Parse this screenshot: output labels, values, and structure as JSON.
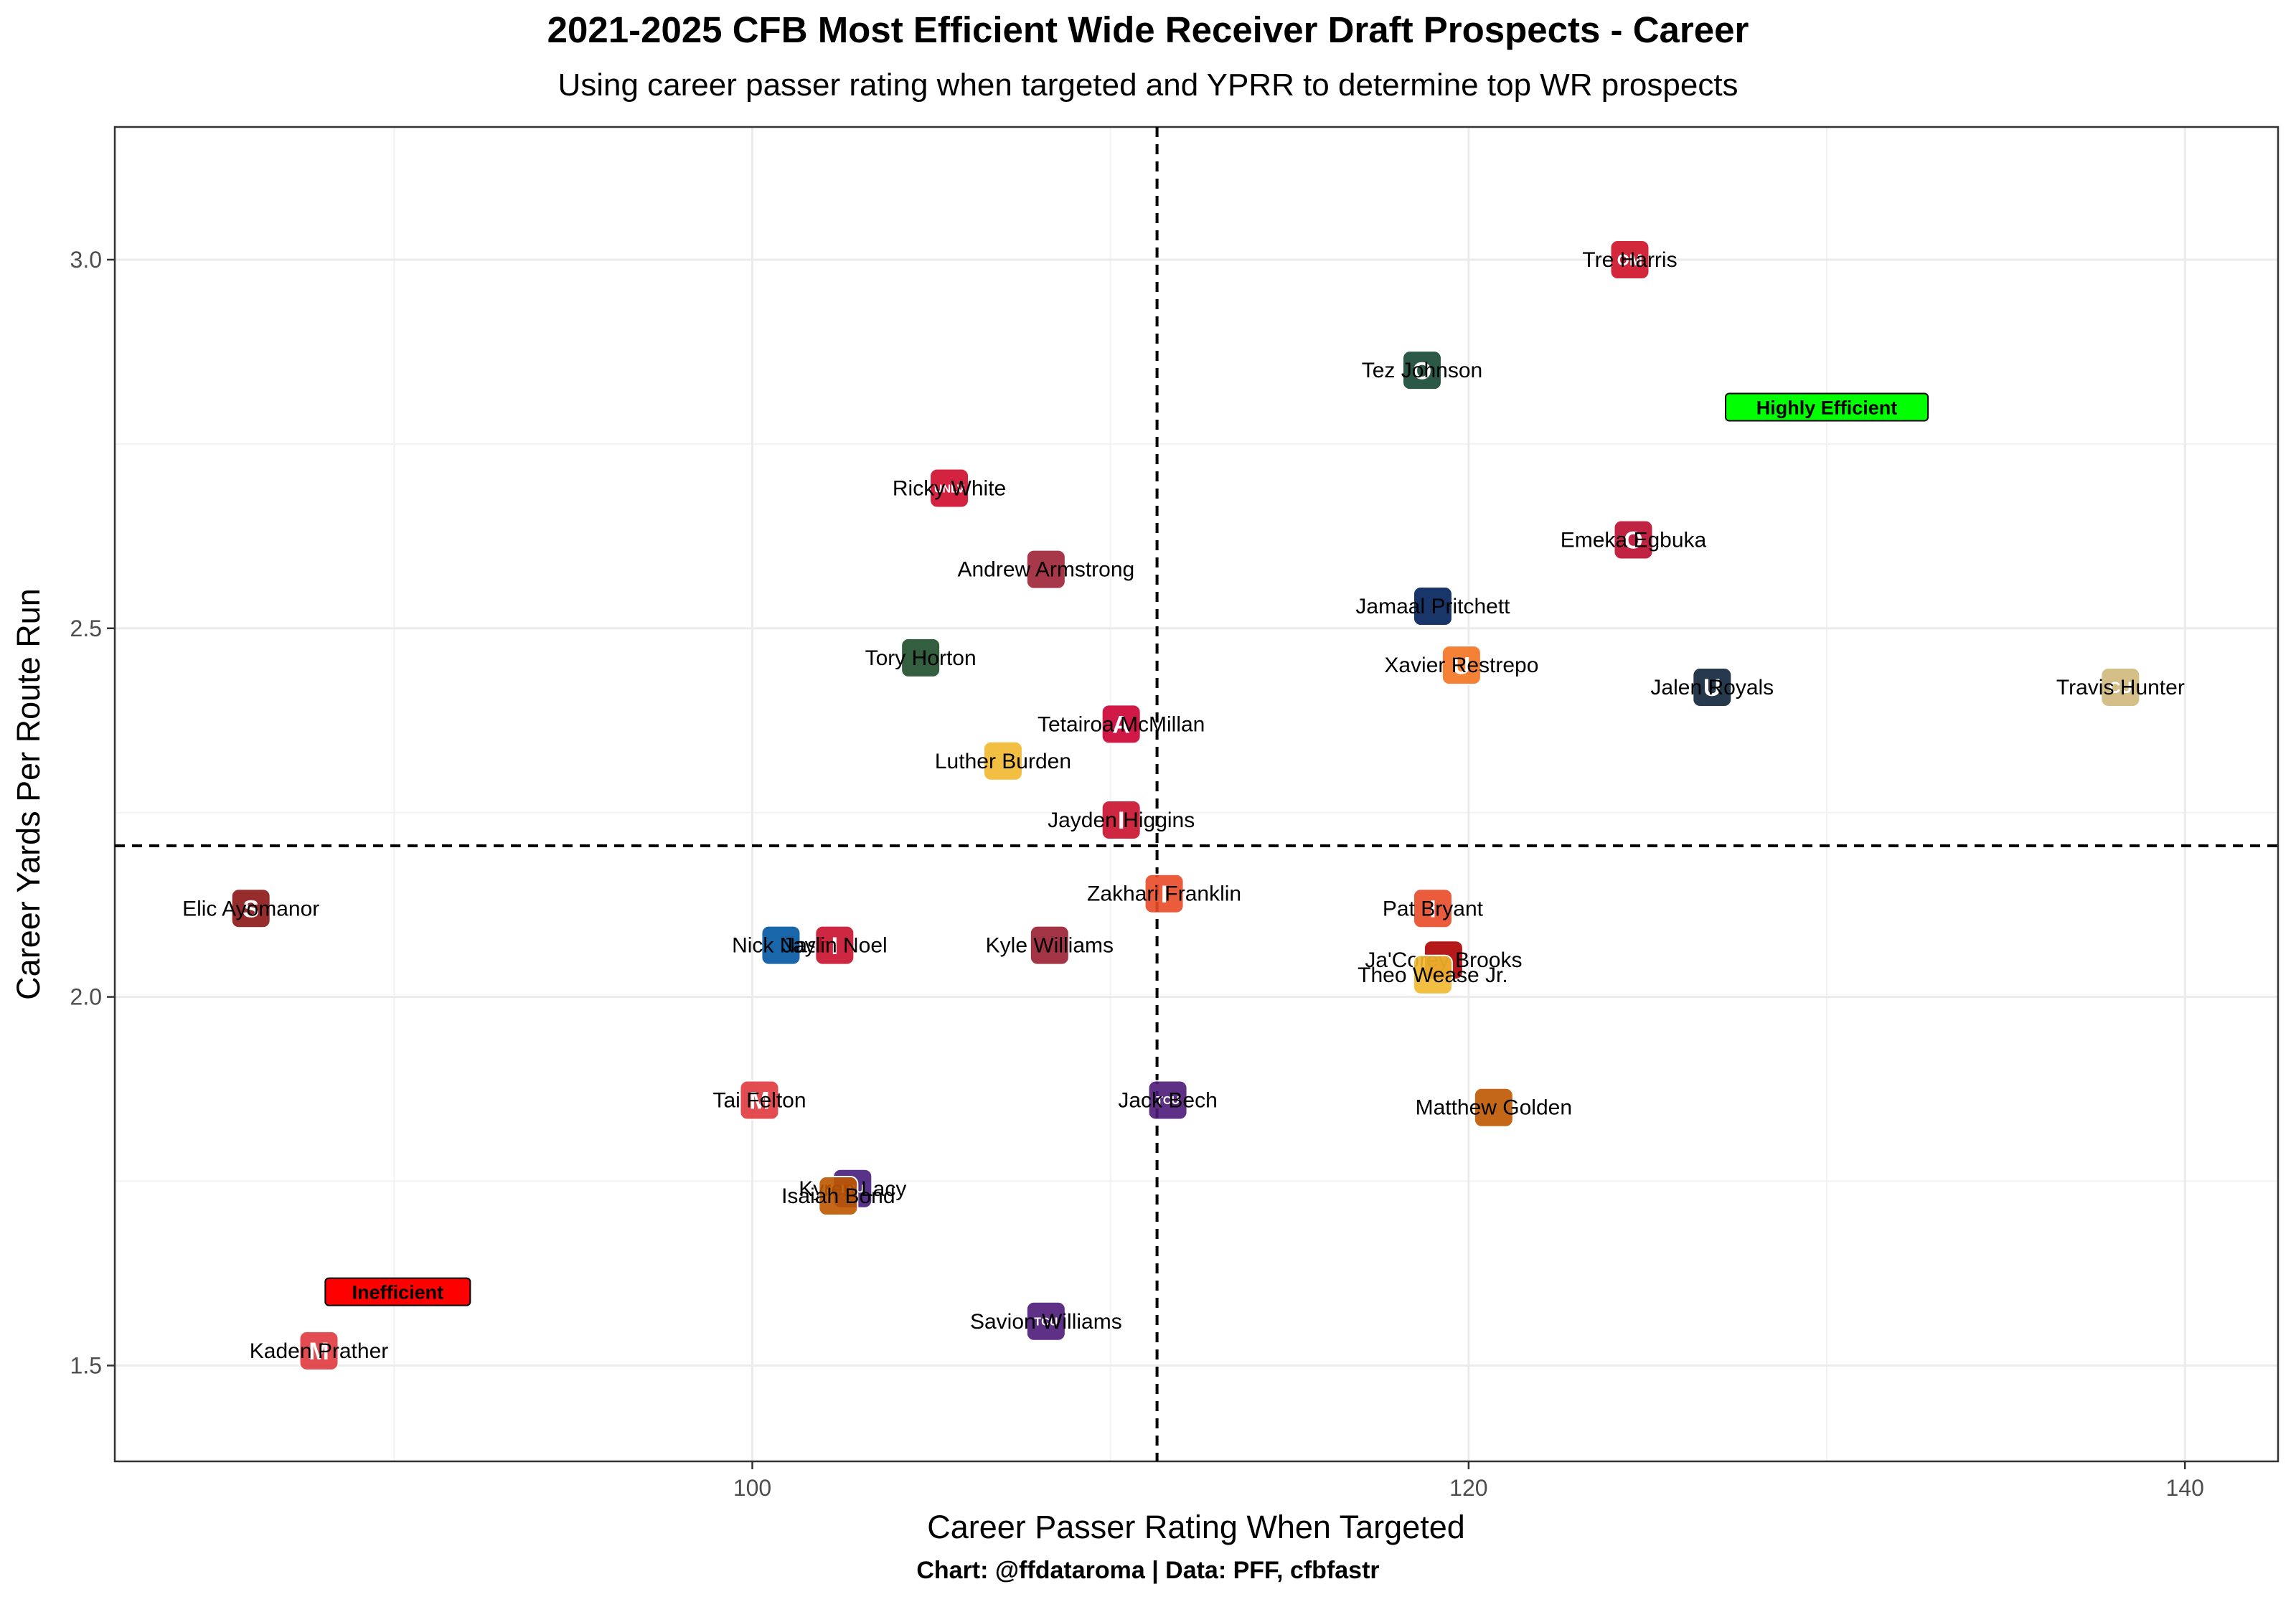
{
  "title": "2021-2025 CFB Most Efficient Wide Receiver Draft Prospects - Career",
  "subtitle": "Using career passer rating when targeted and YPRR to determine top WR prospects",
  "caption": "Chart: @ffdataroma | Data: PFF, cfbfastr",
  "chart_data": {
    "type": "scatter",
    "xlabel": "Career Passer Rating When Targeted",
    "ylabel": "Career Yards Per Route Run",
    "xlim": [
      82.2,
      142.6
    ],
    "ylim": [
      1.37,
      3.18
    ],
    "x_ticks": [
      100,
      120,
      140
    ],
    "y_ticks": [
      1.5,
      2.0,
      2.5,
      3.0
    ],
    "x_tick_labels": [
      "100",
      "120",
      "140"
    ],
    "y_tick_labels": [
      "1.5",
      "2.0",
      "2.5",
      "3.0"
    ],
    "grid": true,
    "reference_lines": {
      "x": 111.3,
      "y": 2.205
    },
    "annotations": [
      {
        "text": "Highly Efficient",
        "x": 130.0,
        "y": 2.8,
        "color": "#00ff00"
      },
      {
        "text": "Inefficient",
        "x": 90.1,
        "y": 1.6,
        "color": "#ff0000"
      }
    ],
    "points": [
      {
        "name": "Tre Harris",
        "x": 124.5,
        "y": 3.0,
        "logo": "ole-miss-logo",
        "color": "#ce1126",
        "text": "OM"
      },
      {
        "name": "Tez Johnson",
        "x": 118.7,
        "y": 2.85,
        "logo": "oregon-logo",
        "color": "#154733",
        "text": "O"
      },
      {
        "name": "Ricky White",
        "x": 105.5,
        "y": 2.69,
        "logo": "unlv-logo",
        "color": "#cf0a2c",
        "text": "UNLV"
      },
      {
        "name": "Andrew Armstrong",
        "x": 108.2,
        "y": 2.58,
        "logo": "arkansas-logo",
        "color": "#9d2235",
        "text": ""
      },
      {
        "name": "Emeka Egbuka",
        "x": 124.6,
        "y": 2.62,
        "logo": "ohio-state-logo",
        "color": "#ba0c2f",
        "text": "O"
      },
      {
        "name": "Jamaal Pritchett",
        "x": 119.0,
        "y": 2.53,
        "logo": "south-alabama-logo",
        "color": "#00205b",
        "text": ""
      },
      {
        "name": "Tory Horton",
        "x": 104.7,
        "y": 2.46,
        "logo": "colorado-state-logo",
        "color": "#1e4d2b",
        "text": ""
      },
      {
        "name": "Xavier Restrepo",
        "x": 119.8,
        "y": 2.45,
        "logo": "miami-logo",
        "color": "#f47321",
        "text": "U"
      },
      {
        "name": "Jalen Royals",
        "x": 126.8,
        "y": 2.42,
        "logo": "utah-state-logo",
        "color": "#0f2439",
        "text": "U"
      },
      {
        "name": "Travis Hunter",
        "x": 138.2,
        "y": 2.42,
        "logo": "colorado-logo",
        "color": "#cfb87c",
        "text": "CU"
      },
      {
        "name": "Tetairoa McMillan",
        "x": 110.3,
        "y": 2.37,
        "logo": "arizona-logo",
        "color": "#cc0033",
        "text": "A"
      },
      {
        "name": "Luther Burden",
        "x": 107.0,
        "y": 2.32,
        "logo": "missouri-logo",
        "color": "#f1b82d",
        "text": ""
      },
      {
        "name": "Jayden Higgins",
        "x": 110.3,
        "y": 2.24,
        "logo": "iowa-state-logo",
        "color": "#c8102e",
        "text": "I"
      },
      {
        "name": "Elic Ayomanor",
        "x": 86.0,
        "y": 2.12,
        "logo": "stanford-logo",
        "color": "#8c1515",
        "text": "S"
      },
      {
        "name": "Zakhari Franklin",
        "x": 111.5,
        "y": 2.14,
        "logo": "illinois-logo",
        "color": "#e84a27",
        "text": "I"
      },
      {
        "name": "Pat Bryant",
        "x": 119.0,
        "y": 2.12,
        "logo": "illinois-logo",
        "color": "#e84a27",
        "text": "I"
      },
      {
        "name": "Nick Nash",
        "x": 100.8,
        "y": 2.07,
        "logo": "san-jose-state-logo",
        "color": "#0055a2",
        "text": ""
      },
      {
        "name": "Jaylin Noel",
        "x": 102.3,
        "y": 2.07,
        "logo": "iowa-state-logo",
        "color": "#c8102e",
        "text": "I"
      },
      {
        "name": "Kyle Williams",
        "x": 108.3,
        "y": 2.07,
        "logo": "washington-state-logo",
        "color": "#981e32",
        "text": ""
      },
      {
        "name": "Ja'Corey Brooks",
        "x": 119.3,
        "y": 2.05,
        "logo": "louisville-logo",
        "color": "#ad0000",
        "text": ""
      },
      {
        "name": "Theo Wease Jr.",
        "x": 119.0,
        "y": 2.03,
        "logo": "missouri-logo",
        "color": "#f1b82d",
        "text": ""
      },
      {
        "name": "Tai Felton",
        "x": 100.2,
        "y": 1.86,
        "logo": "maryland-logo",
        "color": "#e03a3e",
        "text": "M"
      },
      {
        "name": "Jack Bech",
        "x": 111.6,
        "y": 1.86,
        "logo": "tcu-logo",
        "color": "#4d1979",
        "text": "TCU"
      },
      {
        "name": "Matthew Golden",
        "x": 120.7,
        "y": 1.85,
        "logo": "texas-logo",
        "color": "#bf5700",
        "text": ""
      },
      {
        "name": "Kyren Lacy",
        "x": 102.8,
        "y": 1.74,
        "logo": "lsu-logo",
        "color": "#461d7c",
        "text": "LSU"
      },
      {
        "name": "Isaiah Bond",
        "x": 102.4,
        "y": 1.73,
        "logo": "texas-logo",
        "color": "#bf5700",
        "text": ""
      },
      {
        "name": "Savion Williams",
        "x": 108.2,
        "y": 1.56,
        "logo": "tcu-logo",
        "color": "#4d1979",
        "text": "TCU"
      },
      {
        "name": "Kaden Prather",
        "x": 87.9,
        "y": 1.52,
        "logo": "maryland-logo",
        "color": "#e03a3e",
        "text": "M"
      }
    ]
  }
}
